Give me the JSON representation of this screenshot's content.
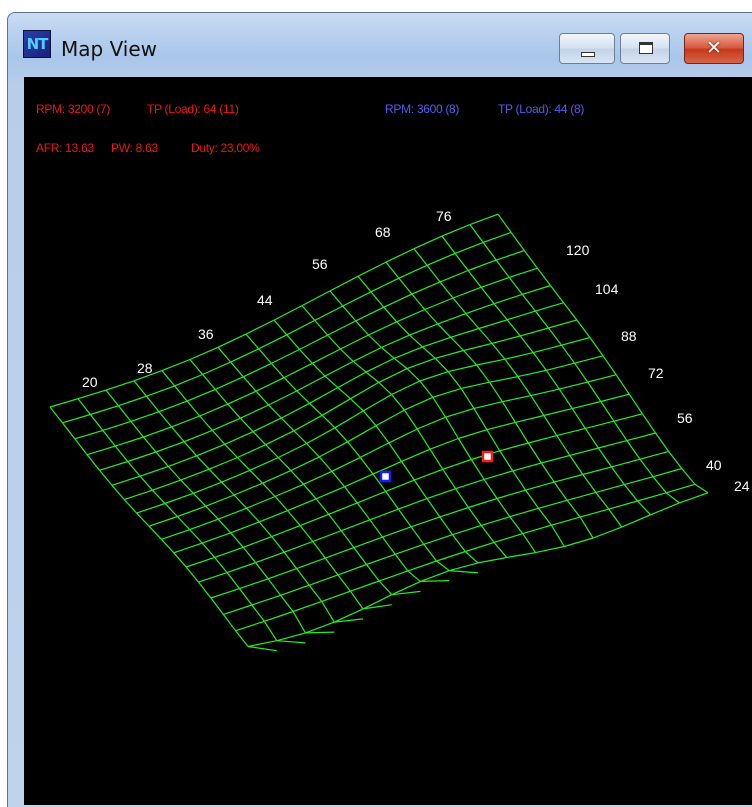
{
  "window": {
    "title": "Map View",
    "icon_text": "NT",
    "buttons": {
      "minimize": "minimize-icon",
      "maximize": "maximize-icon",
      "close": "close-icon"
    }
  },
  "status": {
    "current": {
      "rpm": "RPM: 3200 (7)",
      "tp": "TP (Load): 64 (11)"
    },
    "target": {
      "rpm": "RPM: 3600 (8)",
      "tp": "TP (Load): 44 (8)"
    },
    "afr": "AFR: 13.63",
    "pw": "PW: 8.63",
    "duty": "Duty: 23.00%"
  },
  "map": {
    "load_axis_labels": [
      "20",
      "28",
      "36",
      "44",
      "56",
      "68",
      "76"
    ],
    "rpm_axis_labels": [
      "120",
      "104",
      "88",
      "72",
      "56",
      "40",
      "24"
    ],
    "colors": {
      "mesh": "#22ee22",
      "current_marker": "#ff1a1a",
      "target_marker": "#1a1aff",
      "current_text": "#e81818",
      "target_text": "#5a5af0"
    }
  }
}
